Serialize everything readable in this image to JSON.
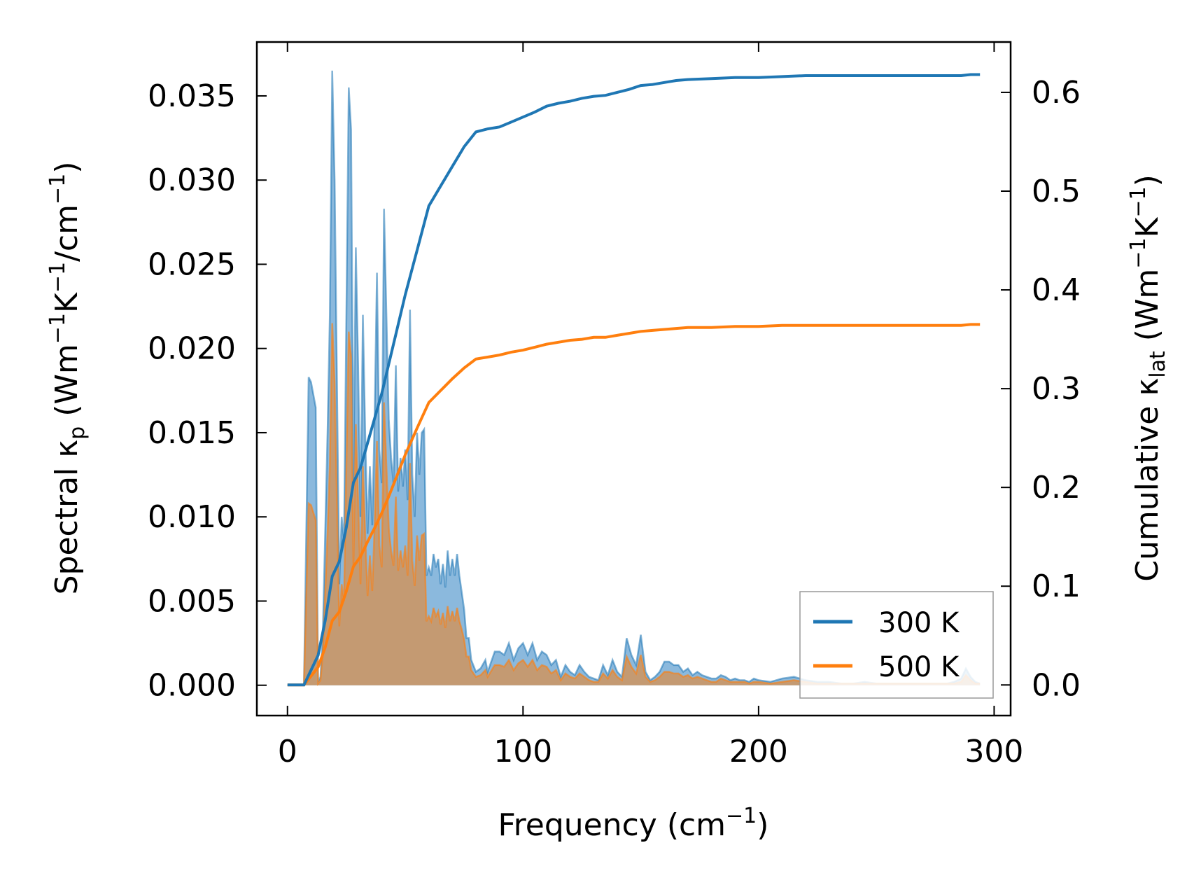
{
  "chart_data": {
    "type": "area",
    "xlabel": {
      "base": "Frequency (cm",
      "sup": "−1",
      "end": ")"
    },
    "ylabel_left": {
      "p1": "Spectral κ",
      "sub": "p",
      "p2": " (Wm",
      "sup1": "−1",
      "p3": "K",
      "sup2": "−1",
      "p4": "/cm",
      "sup3": "−1",
      "p5": ")"
    },
    "ylabel_right": {
      "p1": "Cumulative κ",
      "sub": "lat",
      "p2": " (Wm",
      "sup1": "−1",
      "p3": "K",
      "sup2": "−1",
      "p4": ")"
    },
    "xlim": [
      -13,
      307
    ],
    "ylim_left": [
      -0.0018,
      0.0382
    ],
    "ylim_right": [
      -0.031,
      0.651
    ],
    "xticks": [
      0,
      100,
      200,
      300
    ],
    "xtick_labels": [
      "0",
      "100",
      "200",
      "300"
    ],
    "yticks_left": [
      0.0,
      0.005,
      0.01,
      0.015,
      0.02,
      0.025,
      0.03,
      0.035
    ],
    "ytick_labels_left": [
      "0.000",
      "0.005",
      "0.010",
      "0.015",
      "0.020",
      "0.025",
      "0.030",
      "0.035"
    ],
    "yticks_right": [
      0.0,
      0.1,
      0.2,
      0.3,
      0.4,
      0.5,
      0.6
    ],
    "ytick_labels_right": [
      "0.0",
      "0.1",
      "0.2",
      "0.3",
      "0.4",
      "0.5",
      "0.6"
    ],
    "legend": {
      "location": "lower-right",
      "entries": [
        "300 K",
        "500 K"
      ]
    },
    "colors": {
      "s300": "#1f77b4",
      "s500": "#ff7f0e",
      "fill300": "#8bb9dd",
      "fill500": "#c49a72"
    },
    "spectral": {
      "x": [
        0,
        7,
        9,
        10,
        12,
        13,
        14,
        15,
        17,
        18,
        19,
        20,
        22,
        23,
        24,
        26,
        27,
        28,
        29,
        30,
        31,
        32,
        33,
        34,
        35,
        36,
        37,
        38,
        39,
        40,
        41,
        42,
        43,
        44,
        45,
        46,
        47,
        48,
        49,
        50,
        51,
        52,
        53,
        54,
        55,
        56,
        57,
        58,
        59,
        60,
        61,
        62,
        63,
        64,
        65,
        66,
        67,
        68,
        69,
        70,
        71,
        72,
        73,
        74,
        75,
        76,
        77,
        78,
        80,
        82,
        84,
        85,
        88,
        90,
        92,
        94,
        96,
        98,
        100,
        102,
        104,
        106,
        108,
        110,
        112,
        114,
        116,
        118,
        120,
        122,
        124,
        126,
        128,
        130,
        132,
        134,
        136,
        138,
        140,
        142,
        144,
        146,
        148,
        150,
        152,
        154,
        156,
        158,
        160,
        162,
        164,
        166,
        168,
        170,
        172,
        174,
        176,
        178,
        180,
        182,
        184,
        186,
        188,
        190,
        192,
        194,
        196,
        198,
        200,
        205,
        210,
        215,
        220,
        225,
        230,
        235,
        240,
        245,
        250,
        255,
        260,
        265,
        270,
        275,
        280,
        283,
        286,
        288,
        290,
        292,
        294
      ],
      "v300": [
        0,
        0,
        0.0183,
        0.018,
        0.0165,
        0.0002,
        0.0005,
        0.003,
        0.015,
        0.022,
        0.0365,
        0.03,
        0.006,
        0.01,
        0.0085,
        0.0355,
        0.033,
        0.012,
        0.026,
        0.019,
        0.01,
        0.022,
        0.015,
        0.009,
        0.013,
        0.0095,
        0.016,
        0.0245,
        0.014,
        0.012,
        0.0283,
        0.022,
        0.0158,
        0.0135,
        0.012,
        0.019,
        0.0115,
        0.0135,
        0.0118,
        0.014,
        0.011,
        0.0223,
        0.0125,
        0.01,
        0.015,
        0.0125,
        0.015,
        0.0152,
        0.0065,
        0.007,
        0.0065,
        0.0078,
        0.007,
        0.0075,
        0.006,
        0.0072,
        0.0058,
        0.008,
        0.0065,
        0.0075,
        0.0065,
        0.0078,
        0.0065,
        0.0055,
        0.0045,
        0.0028,
        0.0028,
        0.0015,
        0.0008,
        0.001,
        0.0015,
        0.0008,
        0.002,
        0.002,
        0.0018,
        0.0025,
        0.0015,
        0.0022,
        0.0025,
        0.0018,
        0.0025,
        0.0015,
        0.002,
        0.0018,
        0.0012,
        0.0015,
        0.0005,
        0.0012,
        0.0008,
        0.0006,
        0.0012,
        0.0008,
        0.0005,
        0.0004,
        0.0003,
        0.0012,
        0.0006,
        0.0015,
        0.0008,
        0.0005,
        0.0028,
        0.0018,
        0.0012,
        0.003,
        0.0008,
        0.0003,
        0.0005,
        0.0008,
        0.0014,
        0.0014,
        0.0012,
        0.0012,
        0.0008,
        0.001,
        0.0006,
        0.0008,
        0.0006,
        0.0005,
        0.0004,
        0.0004,
        0.0006,
        0.0005,
        0.0003,
        0.0004,
        0.0003,
        0.0003,
        0.0002,
        0.0004,
        0.0003,
        0.0002,
        0.0004,
        0.0005,
        0.0003,
        0.0002,
        0.0002,
        0.0001,
        0.0001,
        0.0002,
        0.0001,
        0.0001,
        0.0001,
        0.0001,
        0.0001,
        0.0001,
        0.0001,
        0.0002,
        0.0004,
        0.001,
        0.0005,
        0.0002,
        0.0001
      ],
      "v500": [
        0,
        0,
        0.0108,
        0.0107,
        0.0098,
        0.0001,
        0.0003,
        0.0018,
        0.009,
        0.0131,
        0.0215,
        0.018,
        0.0035,
        0.006,
        0.005,
        0.021,
        0.0195,
        0.007,
        0.0155,
        0.011,
        0.006,
        0.013,
        0.009,
        0.0053,
        0.0077,
        0.0056,
        0.0095,
        0.0145,
        0.0083,
        0.007,
        0.0168,
        0.013,
        0.0093,
        0.008,
        0.0071,
        0.0112,
        0.0068,
        0.008,
        0.007,
        0.0083,
        0.0065,
        0.0132,
        0.0074,
        0.0059,
        0.0089,
        0.0074,
        0.0089,
        0.009,
        0.0038,
        0.0041,
        0.0038,
        0.0046,
        0.0041,
        0.0044,
        0.0036,
        0.0043,
        0.0034,
        0.0047,
        0.0038,
        0.0044,
        0.0038,
        0.0046,
        0.0038,
        0.0033,
        0.0027,
        0.0017,
        0.0017,
        0.0009,
        0.0005,
        0.0006,
        0.0009,
        0.0005,
        0.0012,
        0.0012,
        0.0011,
        0.0015,
        0.0009,
        0.0013,
        0.0015,
        0.0011,
        0.0015,
        0.0009,
        0.0012,
        0.0011,
        0.0007,
        0.0009,
        0.0003,
        0.0007,
        0.0005,
        0.0004,
        0.0007,
        0.0005,
        0.0003,
        0.0002,
        0.0002,
        0.0007,
        0.0004,
        0.0009,
        0.0005,
        0.0003,
        0.0017,
        0.0011,
        0.0007,
        0.0018,
        0.0005,
        0.0002,
        0.0003,
        0.0005,
        0.0008,
        0.0008,
        0.0007,
        0.0007,
        0.0005,
        0.0006,
        0.0004,
        0.0005,
        0.0004,
        0.0003,
        0.0002,
        0.0002,
        0.0004,
        0.0003,
        0.0002,
        0.0002,
        0.0002,
        0.0002,
        0.0001,
        0.0002,
        0.0002,
        0.0001,
        0.0002,
        0.0003,
        0.0002,
        0.0001,
        0.0001,
        0.0001,
        0.0001,
        0.0001,
        0.0001,
        0.0001,
        0.0001,
        0.0001,
        0.0001,
        0.0001,
        0.0001,
        0.0001,
        0.0002,
        0.0006,
        0.0003,
        0.0001,
        0.0001
      ]
    },
    "cumulative": {
      "x": [
        0,
        7,
        10,
        13,
        16,
        19,
        22,
        25,
        28,
        31,
        34,
        37,
        40,
        43,
        46,
        50,
        55,
        60,
        65,
        70,
        75,
        80,
        85,
        90,
        95,
        100,
        105,
        110,
        115,
        120,
        125,
        130,
        135,
        140,
        145,
        150,
        155,
        160,
        165,
        170,
        180,
        190,
        200,
        210,
        220,
        230,
        240,
        260,
        280,
        286,
        290,
        294
      ],
      "c300": [
        0,
        0,
        0.015,
        0.03,
        0.065,
        0.11,
        0.125,
        0.16,
        0.205,
        0.22,
        0.245,
        0.27,
        0.295,
        0.325,
        0.355,
        0.395,
        0.44,
        0.485,
        0.505,
        0.525,
        0.545,
        0.56,
        0.563,
        0.565,
        0.57,
        0.575,
        0.58,
        0.586,
        0.589,
        0.591,
        0.594,
        0.596,
        0.597,
        0.6,
        0.603,
        0.607,
        0.608,
        0.61,
        0.612,
        0.613,
        0.614,
        0.615,
        0.615,
        0.616,
        0.617,
        0.617,
        0.617,
        0.617,
        0.617,
        0.617,
        0.618,
        0.618
      ],
      "c500": [
        0,
        0,
        0.009,
        0.018,
        0.038,
        0.065,
        0.074,
        0.095,
        0.12,
        0.13,
        0.145,
        0.159,
        0.174,
        0.191,
        0.209,
        0.233,
        0.26,
        0.286,
        0.298,
        0.31,
        0.321,
        0.33,
        0.332,
        0.334,
        0.337,
        0.339,
        0.342,
        0.345,
        0.347,
        0.349,
        0.35,
        0.352,
        0.352,
        0.354,
        0.356,
        0.358,
        0.359,
        0.36,
        0.361,
        0.362,
        0.362,
        0.363,
        0.363,
        0.364,
        0.364,
        0.364,
        0.364,
        0.364,
        0.364,
        0.364,
        0.365,
        0.365
      ]
    }
  }
}
